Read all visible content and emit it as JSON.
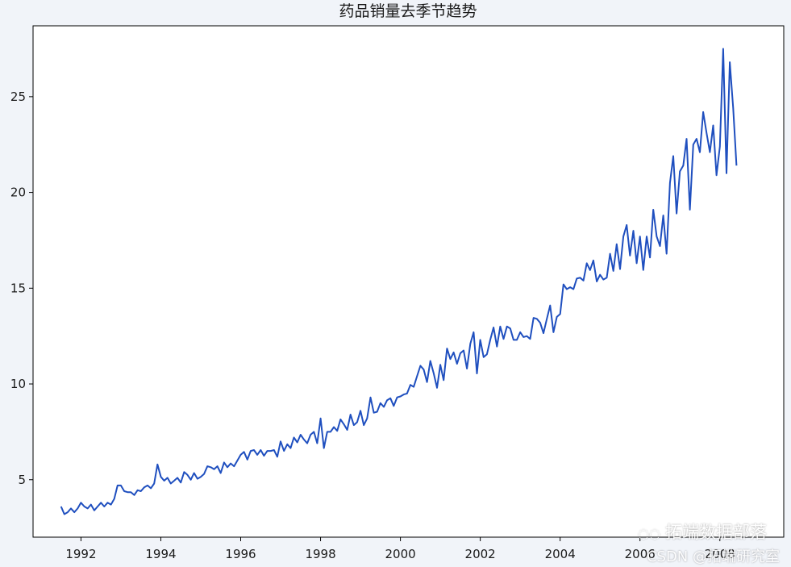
{
  "colors": {
    "line": "#1f4fbf",
    "axes": "#000000",
    "background": "#f1f4f9",
    "plot_bg": "#ffffff"
  },
  "chart_data": {
    "type": "line",
    "title": "药品销量去季节趋势",
    "xlabel": "",
    "ylabel": "",
    "xlim": [
      1990.8,
      2009.6
    ],
    "ylim": [
      2.0,
      28.7
    ],
    "grid": false,
    "xticks": [
      1992,
      1994,
      1996,
      1998,
      2000,
      2002,
      2004,
      2006,
      2008
    ],
    "xtick_labels": [
      "1992",
      "1994",
      "1996",
      "1998",
      "2000",
      "2002",
      "2004",
      "2006",
      "2008"
    ],
    "yticks": [
      5,
      10,
      15,
      20,
      25
    ],
    "ytick_labels": [
      "5",
      "10",
      "15",
      "20",
      "25"
    ],
    "series": [
      {
        "start": 1991.5,
        "step": 0.0833333,
        "values": [
          3.6,
          3.2,
          3.3,
          3.5,
          3.3,
          3.5,
          3.8,
          3.6,
          3.5,
          3.7,
          3.4,
          3.6,
          3.8,
          3.6,
          3.8,
          3.7,
          4.0,
          4.7,
          4.7,
          4.4,
          4.35,
          4.35,
          4.2,
          4.45,
          4.4,
          4.6,
          4.7,
          4.55,
          4.8,
          5.8,
          5.15,
          4.95,
          5.1,
          4.8,
          4.95,
          5.1,
          4.85,
          5.4,
          5.25,
          5.0,
          5.35,
          5.05,
          5.15,
          5.3,
          5.7,
          5.65,
          5.55,
          5.7,
          5.35,
          5.9,
          5.65,
          5.85,
          5.7,
          6.0,
          6.3,
          6.45,
          6.05,
          6.5,
          6.55,
          6.3,
          6.55,
          6.25,
          6.5,
          6.5,
          6.55,
          6.2,
          7.0,
          6.5,
          6.85,
          6.65,
          7.2,
          6.95,
          7.35,
          7.1,
          6.9,
          7.35,
          7.5,
          6.9,
          8.2,
          6.65,
          7.5,
          7.5,
          7.75,
          7.55,
          8.15,
          7.9,
          7.6,
          8.4,
          7.85,
          8.0,
          8.6,
          7.85,
          8.2,
          9.3,
          8.5,
          8.55,
          9.0,
          8.8,
          9.15,
          9.25,
          8.85,
          9.3,
          9.35,
          9.45,
          9.5,
          9.95,
          9.85,
          10.4,
          10.95,
          10.75,
          10.1,
          11.2,
          10.55,
          9.8,
          11.0,
          10.2,
          11.85,
          11.3,
          11.65,
          11.05,
          11.6,
          11.75,
          10.8,
          12.1,
          12.7,
          10.55,
          12.3,
          11.4,
          11.55,
          12.3,
          12.95,
          11.95,
          13.0,
          12.35,
          13.0,
          12.9,
          12.3,
          12.3,
          12.7,
          12.45,
          12.5,
          12.35,
          13.45,
          13.4,
          13.2,
          12.65,
          13.4,
          14.1,
          12.7,
          13.5,
          13.65,
          15.2,
          14.95,
          15.05,
          14.95,
          15.5,
          15.55,
          15.4,
          16.3,
          15.95,
          16.45,
          15.35,
          15.7,
          15.45,
          15.55,
          16.8,
          15.9,
          17.3,
          16.0,
          17.7,
          18.3,
          16.7,
          18.0,
          16.3,
          17.7,
          15.95,
          17.7,
          16.6,
          19.1,
          17.7,
          17.2,
          18.8,
          16.8,
          20.5,
          21.9,
          18.9,
          21.1,
          21.4,
          22.8,
          19.1,
          22.5,
          22.8,
          22.1,
          24.2,
          23.1,
          22.1,
          23.5,
          20.9,
          22.4,
          27.5,
          21.0,
          26.8,
          24.4,
          21.4
        ]
      }
    ]
  },
  "watermark": {
    "line1": "拓端数据部落",
    "line2": "CSDN @拓端研究室",
    "icon": "wechat-icon"
  }
}
